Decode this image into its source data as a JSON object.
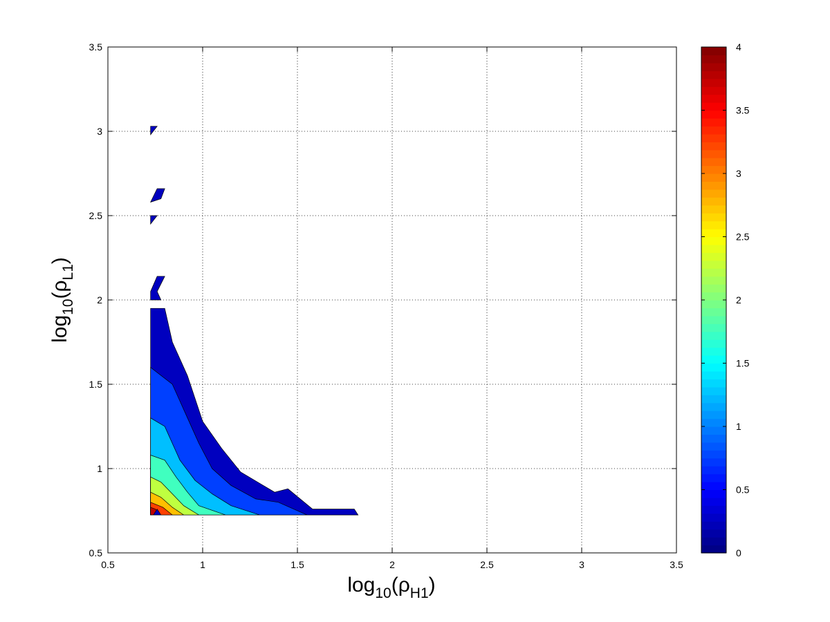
{
  "chart_data": {
    "type": "heatmap",
    "subtype": "filled-contour",
    "xlabel": {
      "base": "log",
      "sub1": "10",
      "mid": "(ρ",
      "sub2": "H1",
      "end": ")"
    },
    "ylabel": {
      "base": "log",
      "sub1": "10",
      "mid": "(ρ",
      "sub2": "L1",
      "end": ")"
    },
    "xlim": [
      0.5,
      3.5
    ],
    "ylim": [
      0.5,
      3.5
    ],
    "x_ticks": [
      0.5,
      1,
      1.5,
      2,
      2.5,
      3,
      3.5
    ],
    "x_tick_labels": [
      "0.5",
      "1",
      "1.5",
      "2",
      "2.5",
      "3",
      "3.5"
    ],
    "y_ticks": [
      0.5,
      1,
      1.5,
      2,
      2.5,
      3,
      3.5
    ],
    "y_tick_labels": [
      "0.5",
      "1",
      "1.5",
      "2",
      "2.5",
      "3",
      "3.5"
    ],
    "grid": true,
    "colorbar": {
      "colormap": "jet",
      "range": [
        0,
        4
      ],
      "ticks": [
        0,
        0.5,
        1,
        1.5,
        2,
        2.5,
        3,
        3.5,
        4
      ],
      "tick_labels": [
        "0",
        "0.5",
        "1",
        "1.5",
        "2",
        "2.5",
        "3",
        "3.5",
        "4"
      ],
      "position": "right"
    },
    "contour_levels": [
      0,
      0.5,
      1,
      1.5,
      2,
      2.5,
      3,
      3.5,
      4
    ],
    "region_origin": [
      0.725,
      0.725
    ],
    "region_x_max": 1.82,
    "peak_value": 4.0,
    "peak_location": [
      0.725,
      0.725
    ],
    "level_sets": [
      {
        "level": 0.0,
        "points": [
          [
            0.725,
            0.725
          ],
          [
            1.82,
            0.725
          ],
          [
            1.8,
            0.76
          ],
          [
            1.58,
            0.76
          ],
          [
            1.45,
            0.88
          ],
          [
            1.38,
            0.86
          ],
          [
            1.2,
            0.98
          ],
          [
            1.1,
            1.12
          ],
          [
            1.0,
            1.28
          ],
          [
            0.92,
            1.55
          ],
          [
            0.84,
            1.75
          ],
          [
            0.8,
            1.95
          ],
          [
            0.725,
            1.95
          ]
        ]
      },
      {
        "level": 0.5,
        "points": [
          [
            0.725,
            0.725
          ],
          [
            1.55,
            0.725
          ],
          [
            1.4,
            0.8
          ],
          [
            1.28,
            0.82
          ],
          [
            1.15,
            0.9
          ],
          [
            1.05,
            1.0
          ],
          [
            0.98,
            1.15
          ],
          [
            0.92,
            1.3
          ],
          [
            0.84,
            1.5
          ],
          [
            0.725,
            1.6
          ]
        ]
      },
      {
        "level": 1.0,
        "points": [
          [
            0.725,
            0.725
          ],
          [
            1.3,
            0.725
          ],
          [
            1.15,
            0.78
          ],
          [
            1.05,
            0.85
          ],
          [
            0.96,
            0.93
          ],
          [
            0.88,
            1.05
          ],
          [
            0.8,
            1.25
          ],
          [
            0.725,
            1.3
          ]
        ]
      },
      {
        "level": 1.5,
        "points": [
          [
            0.725,
            0.725
          ],
          [
            1.12,
            0.725
          ],
          [
            0.98,
            0.78
          ],
          [
            0.92,
            0.86
          ],
          [
            0.86,
            0.95
          ],
          [
            0.8,
            1.05
          ],
          [
            0.725,
            1.08
          ]
        ]
      },
      {
        "level": 2.0,
        "points": [
          [
            0.725,
            0.725
          ],
          [
            0.98,
            0.725
          ],
          [
            0.9,
            0.78
          ],
          [
            0.84,
            0.85
          ],
          [
            0.78,
            0.92
          ],
          [
            0.725,
            0.95
          ]
        ]
      },
      {
        "level": 2.5,
        "points": [
          [
            0.725,
            0.725
          ],
          [
            0.9,
            0.725
          ],
          [
            0.84,
            0.77
          ],
          [
            0.78,
            0.83
          ],
          [
            0.725,
            0.86
          ]
        ]
      },
      {
        "level": 3.0,
        "points": [
          [
            0.725,
            0.725
          ],
          [
            0.84,
            0.725
          ],
          [
            0.79,
            0.77
          ],
          [
            0.725,
            0.8
          ]
        ]
      },
      {
        "level": 3.5,
        "points": [
          [
            0.725,
            0.725
          ],
          [
            0.78,
            0.725
          ],
          [
            0.75,
            0.76
          ],
          [
            0.725,
            0.77
          ]
        ]
      }
    ],
    "isolated_patches": [
      {
        "level": 0.0,
        "points": [
          [
            0.725,
            2.98
          ],
          [
            0.76,
            3.03
          ],
          [
            0.725,
            3.03
          ]
        ]
      },
      {
        "level": 0.0,
        "points": [
          [
            0.725,
            2.58
          ],
          [
            0.76,
            2.66
          ],
          [
            0.8,
            2.66
          ],
          [
            0.78,
            2.6
          ]
        ]
      },
      {
        "level": 0.0,
        "points": [
          [
            0.725,
            2.45
          ],
          [
            0.76,
            2.5
          ],
          [
            0.725,
            2.5
          ]
        ]
      },
      {
        "level": 0.0,
        "points": [
          [
            0.725,
            2.05
          ],
          [
            0.76,
            2.14
          ],
          [
            0.8,
            2.14
          ],
          [
            0.76,
            2.05
          ],
          [
            0.78,
            2.0
          ],
          [
            0.725,
            2.0
          ]
        ]
      },
      {
        "level": 0.0,
        "points": [
          [
            0.74,
            0.725
          ],
          [
            0.78,
            0.725
          ],
          [
            0.76,
            0.76
          ]
        ]
      }
    ]
  }
}
